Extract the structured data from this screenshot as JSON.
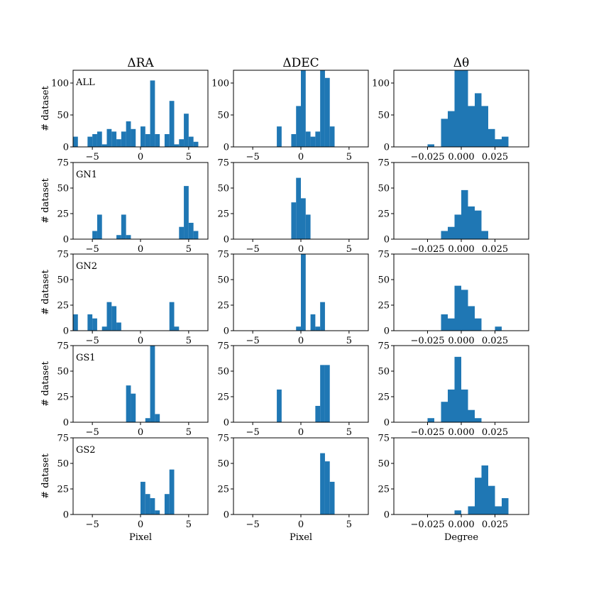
{
  "colors": {
    "bar": "#1f77b4",
    "axis": "#000000",
    "background": "#ffffff"
  },
  "chart_data": {
    "type": "bar",
    "layout": "5 rows x 3 columns of histograms",
    "column_titles": [
      "ΔRA",
      "ΔDEC",
      "Δθ"
    ],
    "row_labels": [
      "ALL",
      "GN1",
      "GN2",
      "GS1",
      "GS2"
    ],
    "ylabel": "# dataset",
    "xlabels": [
      "Pixel",
      "Pixel",
      "Degree"
    ],
    "columns": [
      {
        "xlim": [
          -7,
          7
        ],
        "bin_width": 0.5,
        "xticks": [
          -5,
          0,
          5
        ],
        "xtick_labels": [
          "−5",
          "0",
          "5"
        ]
      },
      {
        "xlim": [
          -7,
          7
        ],
        "bin_width": 0.5,
        "xticks": [
          -5,
          0,
          5
        ],
        "xtick_labels": [
          "−5",
          "0",
          "5"
        ]
      },
      {
        "xlim": [
          -0.05,
          0.05
        ],
        "bin_width": 0.005,
        "xticks": [
          -0.025,
          0,
          0.025
        ],
        "xtick_labels": [
          "−0.025",
          "0.000",
          "0.025"
        ]
      }
    ],
    "rows": [
      {
        "ylim": [
          0,
          120
        ],
        "yticks": [
          0,
          50,
          100
        ],
        "panels": [
          {
            "bins": [
              {
                "x0": -7.0,
                "value": 16
              },
              {
                "x0": -5.5,
                "value": 16
              },
              {
                "x0": -5.0,
                "value": 20
              },
              {
                "x0": -4.5,
                "value": 24
              },
              {
                "x0": -4.0,
                "value": 4
              },
              {
                "x0": -3.5,
                "value": 28
              },
              {
                "x0": -3.0,
                "value": 24
              },
              {
                "x0": -2.5,
                "value": 12
              },
              {
                "x0": -2.0,
                "value": 24
              },
              {
                "x0": -1.5,
                "value": 40
              },
              {
                "x0": -1.0,
                "value": 28
              },
              {
                "x0": 0.0,
                "value": 32
              },
              {
                "x0": 0.5,
                "value": 20
              },
              {
                "x0": 1.0,
                "value": 104
              },
              {
                "x0": 1.5,
                "value": 20
              },
              {
                "x0": 2.5,
                "value": 20
              },
              {
                "x0": 3.0,
                "value": 72
              },
              {
                "x0": 3.5,
                "value": 4
              },
              {
                "x0": 4.0,
                "value": 12
              },
              {
                "x0": 4.5,
                "value": 52
              },
              {
                "x0": 5.0,
                "value": 16
              },
              {
                "x0": 5.5,
                "value": 8
              }
            ]
          },
          {
            "bins": [
              {
                "x0": -2.5,
                "value": 32
              },
              {
                "x0": -1.0,
                "value": 20
              },
              {
                "x0": -0.5,
                "value": 64
              },
              {
                "x0": 0.0,
                "value": 120
              },
              {
                "x0": 0.5,
                "value": 24
              },
              {
                "x0": 1.0,
                "value": 16
              },
              {
                "x0": 1.5,
                "value": 24
              },
              {
                "x0": 2.0,
                "value": 120
              },
              {
                "x0": 2.5,
                "value": 108
              },
              {
                "x0": 3.0,
                "value": 32
              }
            ]
          },
          {
            "bins": [
              {
                "x0": -0.025,
                "value": 4
              },
              {
                "x0": -0.015,
                "value": 44
              },
              {
                "x0": -0.01,
                "value": 56
              },
              {
                "x0": -0.005,
                "value": 120
              },
              {
                "x0": 0.0,
                "value": 120
              },
              {
                "x0": 0.005,
                "value": 64
              },
              {
                "x0": 0.01,
                "value": 84
              },
              {
                "x0": 0.015,
                "value": 64
              },
              {
                "x0": 0.02,
                "value": 28
              },
              {
                "x0": 0.025,
                "value": 12
              },
              {
                "x0": 0.03,
                "value": 16
              }
            ]
          }
        ]
      },
      {
        "ylim": [
          0,
          75
        ],
        "yticks": [
          0,
          25,
          50,
          75
        ],
        "panels": [
          {
            "bins": [
              {
                "x0": -5.0,
                "value": 8
              },
              {
                "x0": -4.5,
                "value": 24
              },
              {
                "x0": -2.5,
                "value": 4
              },
              {
                "x0": -2.0,
                "value": 24
              },
              {
                "x0": -1.5,
                "value": 4
              },
              {
                "x0": 4.0,
                "value": 12
              },
              {
                "x0": 4.5,
                "value": 52
              },
              {
                "x0": 5.0,
                "value": 16
              },
              {
                "x0": 5.5,
                "value": 8
              }
            ]
          },
          {
            "bins": [
              {
                "x0": -1.0,
                "value": 36
              },
              {
                "x0": -0.5,
                "value": 60
              },
              {
                "x0": 0.0,
                "value": 40
              },
              {
                "x0": 0.5,
                "value": 24
              }
            ]
          },
          {
            "bins": [
              {
                "x0": -0.015,
                "value": 8
              },
              {
                "x0": -0.01,
                "value": 12
              },
              {
                "x0": -0.005,
                "value": 24
              },
              {
                "x0": 0.0,
                "value": 48
              },
              {
                "x0": 0.005,
                "value": 32
              },
              {
                "x0": 0.01,
                "value": 28
              },
              {
                "x0": 0.015,
                "value": 8
              }
            ]
          }
        ]
      },
      {
        "ylim": [
          0,
          75
        ],
        "yticks": [
          0,
          25,
          50,
          75
        ],
        "panels": [
          {
            "bins": [
              {
                "x0": -7.0,
                "value": 16
              },
              {
                "x0": -5.5,
                "value": 16
              },
              {
                "x0": -5.0,
                "value": 12
              },
              {
                "x0": -4.0,
                "value": 4
              },
              {
                "x0": -3.5,
                "value": 28
              },
              {
                "x0": -3.0,
                "value": 24
              },
              {
                "x0": -2.5,
                "value": 8
              },
              {
                "x0": 3.0,
                "value": 28
              },
              {
                "x0": 3.5,
                "value": 4
              }
            ]
          },
          {
            "bins": [
              {
                "x0": -0.5,
                "value": 4
              },
              {
                "x0": 0.0,
                "value": 75
              },
              {
                "x0": 1.0,
                "value": 16
              },
              {
                "x0": 1.5,
                "value": 4
              },
              {
                "x0": 2.0,
                "value": 28
              }
            ]
          },
          {
            "bins": [
              {
                "x0": -0.015,
                "value": 16
              },
              {
                "x0": -0.01,
                "value": 12
              },
              {
                "x0": -0.005,
                "value": 44
              },
              {
                "x0": 0.0,
                "value": 40
              },
              {
                "x0": 0.005,
                "value": 24
              },
              {
                "x0": 0.01,
                "value": 12
              },
              {
                "x0": 0.025,
                "value": 4
              }
            ]
          }
        ]
      },
      {
        "ylim": [
          0,
          75
        ],
        "yticks": [
          0,
          25,
          50,
          75
        ],
        "panels": [
          {
            "bins": [
              {
                "x0": -1.5,
                "value": 36
              },
              {
                "x0": -1.0,
                "value": 28
              },
              {
                "x0": 0.5,
                "value": 4
              },
              {
                "x0": 1.0,
                "value": 75
              },
              {
                "x0": 1.5,
                "value": 8
              }
            ]
          },
          {
            "bins": [
              {
                "x0": -2.5,
                "value": 32
              },
              {
                "x0": 1.5,
                "value": 16
              },
              {
                "x0": 2.0,
                "value": 56
              },
              {
                "x0": 2.5,
                "value": 56
              }
            ]
          },
          {
            "bins": [
              {
                "x0": -0.025,
                "value": 4
              },
              {
                "x0": -0.015,
                "value": 20
              },
              {
                "x0": -0.01,
                "value": 32
              },
              {
                "x0": -0.005,
                "value": 64
              },
              {
                "x0": 0.0,
                "value": 32
              },
              {
                "x0": 0.005,
                "value": 12
              },
              {
                "x0": 0.01,
                "value": 4
              }
            ]
          }
        ]
      },
      {
        "ylim": [
          0,
          75
        ],
        "yticks": [
          0,
          25,
          50,
          75
        ],
        "panels": [
          {
            "bins": [
              {
                "x0": 0.0,
                "value": 32
              },
              {
                "x0": 0.5,
                "value": 20
              },
              {
                "x0": 1.0,
                "value": 16
              },
              {
                "x0": 1.5,
                "value": 4
              },
              {
                "x0": 2.5,
                "value": 20
              },
              {
                "x0": 3.0,
                "value": 44
              }
            ]
          },
          {
            "bins": [
              {
                "x0": 2.0,
                "value": 60
              },
              {
                "x0": 2.5,
                "value": 52
              },
              {
                "x0": 3.0,
                "value": 32
              }
            ]
          },
          {
            "bins": [
              {
                "x0": -0.005,
                "value": 4
              },
              {
                "x0": 0.005,
                "value": 8
              },
              {
                "x0": 0.01,
                "value": 36
              },
              {
                "x0": 0.015,
                "value": 48
              },
              {
                "x0": 0.02,
                "value": 28
              },
              {
                "x0": 0.025,
                "value": 8
              },
              {
                "x0": 0.03,
                "value": 16
              }
            ]
          }
        ]
      }
    ]
  }
}
